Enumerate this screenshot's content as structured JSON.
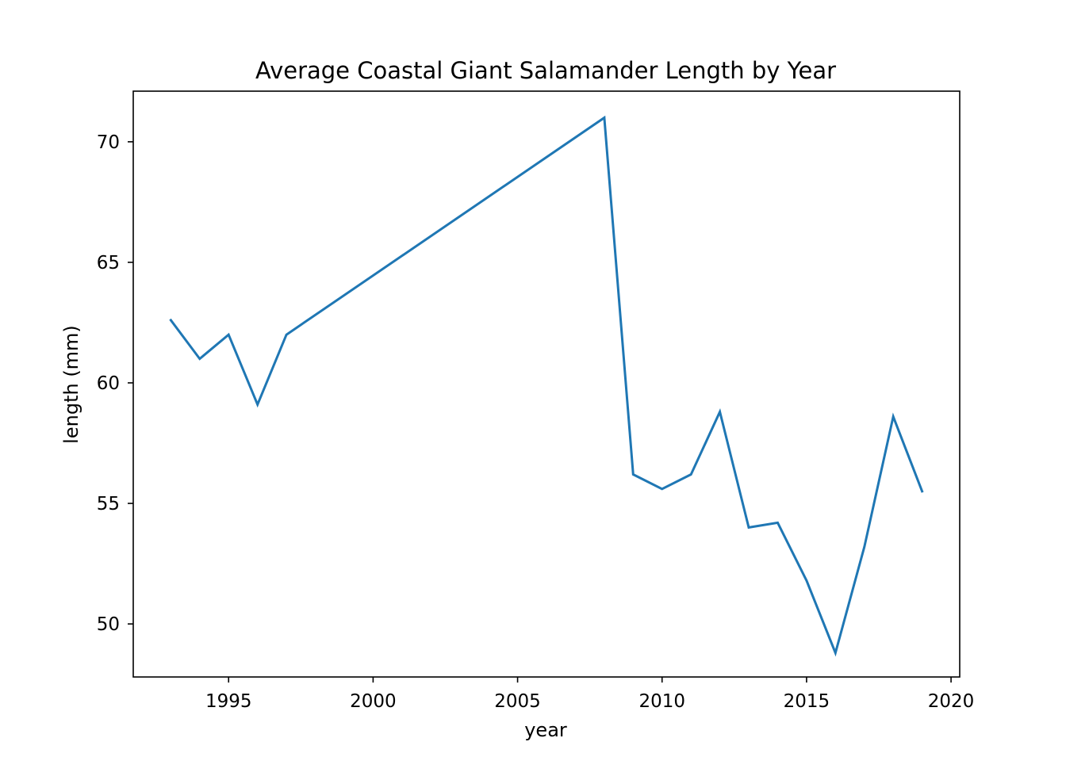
{
  "chart_data": {
    "type": "line",
    "title": "Average Coastal Giant Salamander Length by Year",
    "xlabel": "year",
    "ylabel": "length (mm)",
    "xlim": [
      1991.7,
      2020.3
    ],
    "ylim": [
      47.8,
      72.1
    ],
    "xticks": [
      1995,
      2000,
      2005,
      2010,
      2015,
      2020
    ],
    "yticks": [
      50,
      55,
      60,
      65,
      70
    ],
    "grid": false,
    "legend": "none",
    "series": [
      {
        "color": "#1f77b4",
        "x": [
          1993,
          1994,
          1995,
          1996,
          1997,
          2008,
          2009,
          2010,
          2011,
          2012,
          2013,
          2014,
          2015,
          2016,
          2017,
          2018,
          2019
        ],
        "y": [
          62.6,
          61.0,
          62.0,
          59.1,
          62.0,
          71.0,
          56.2,
          55.6,
          56.2,
          58.8,
          54.0,
          54.2,
          51.8,
          48.8,
          53.2,
          58.6,
          55.5
        ]
      }
    ]
  }
}
